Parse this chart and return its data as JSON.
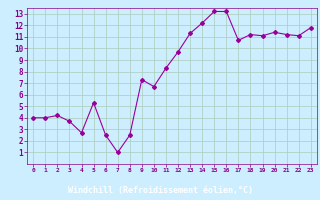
{
  "x": [
    0,
    1,
    2,
    3,
    4,
    5,
    6,
    7,
    8,
    9,
    10,
    11,
    12,
    13,
    14,
    15,
    16,
    17,
    18,
    19,
    20,
    21,
    22,
    23
  ],
  "y": [
    4.0,
    4.0,
    4.2,
    3.7,
    2.7,
    5.3,
    2.5,
    1.0,
    2.5,
    7.3,
    6.7,
    8.3,
    9.7,
    11.3,
    12.2,
    13.2,
    13.2,
    10.7,
    11.2,
    11.1,
    11.4,
    11.2,
    11.1,
    11.8
  ],
  "line_color": "#990099",
  "marker": "D",
  "marker_size": 2,
  "bg_color": "#cceeff",
  "grid_color": "#aaccbb",
  "xlabel": "Windchill (Refroidissement éolien,°C)",
  "xlabel_color": "#ffffff",
  "xlabel_bg": "#880088",
  "xlim": [
    -0.5,
    23.5
  ],
  "ylim": [
    0.0,
    13.5
  ],
  "yticks": [
    1,
    2,
    3,
    4,
    5,
    6,
    7,
    8,
    9,
    10,
    11,
    12,
    13
  ],
  "xticks": [
    0,
    1,
    2,
    3,
    4,
    5,
    6,
    7,
    8,
    9,
    10,
    11,
    12,
    13,
    14,
    15,
    16,
    17,
    18,
    19,
    20,
    21,
    22,
    23
  ],
  "tick_color": "#880088",
  "spine_color": "#880088"
}
